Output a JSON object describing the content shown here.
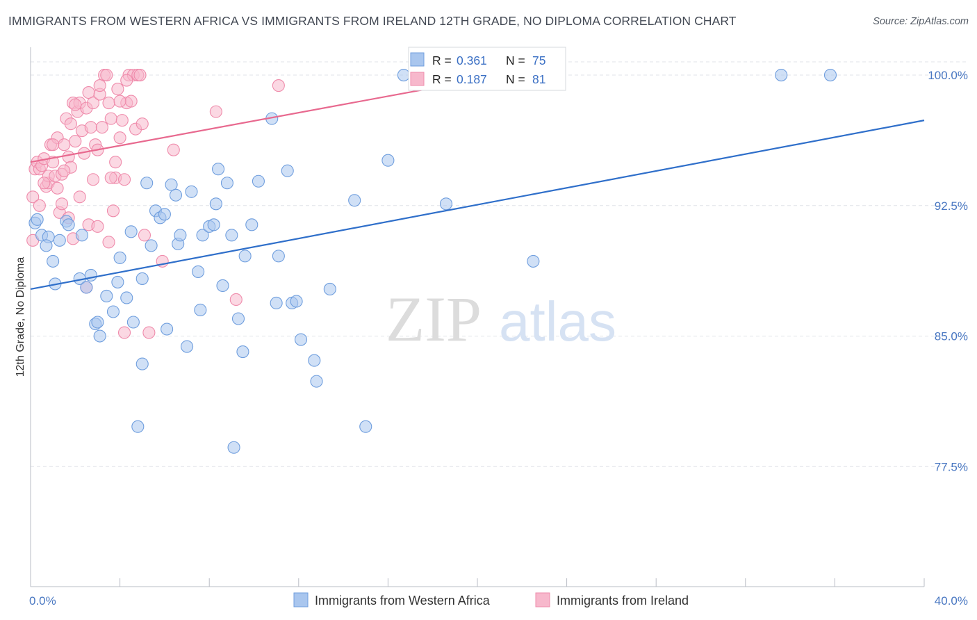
{
  "title": "IMMIGRANTS FROM WESTERN AFRICA VS IMMIGRANTS FROM IRELAND 12TH GRADE, NO DIPLOMA CORRELATION CHART",
  "source": "Source: ZipAtlas.com",
  "watermark": {
    "zip": "ZIP",
    "atlas": "atlas"
  },
  "stats": {
    "series1": {
      "r_label": "R = ",
      "r_value": "0.361",
      "n_label": "N = ",
      "n_value": "75"
    },
    "series2": {
      "r_label": "R = ",
      "r_value": "0.187",
      "n_label": "N = ",
      "n_value": "81"
    }
  },
  "legend": {
    "series1": "Immigrants from Western Africa",
    "series2": "Immigrants from Ireland"
  },
  "colors": {
    "series1_fill": "#a9c6ee",
    "series1_stroke": "#6f9ede",
    "series1_line": "#2f6fca",
    "series2_fill": "#f7b8cc",
    "series2_stroke": "#ef8bab",
    "series2_line": "#e8698f",
    "tick_label": "#4a78c2"
  },
  "chart_data": {
    "type": "scatter",
    "title": "IMMIGRANTS FROM WESTERN AFRICA VS IMMIGRANTS FROM IRELAND 12TH GRADE, NO DIPLOMA CORRELATION CHART",
    "xlabel": "",
    "ylabel": "12th Grade, No Diploma",
    "xlim": [
      0,
      40
    ],
    "ylim": [
      70.6,
      101.6
    ],
    "x_tick_labels": [
      {
        "value": 0,
        "label": "0.0%"
      },
      {
        "value": 40,
        "label": "40.0%"
      }
    ],
    "y_tick_labels": [
      {
        "value": 100,
        "label": "100.0%"
      },
      {
        "value": 92.5,
        "label": "92.5%"
      },
      {
        "value": 85,
        "label": "85.0%"
      },
      {
        "value": 77.5,
        "label": "77.5%"
      }
    ],
    "grid": "horizontal-dashed",
    "legend_position": "bottom",
    "series": [
      {
        "name": "Immigrants from Western Africa",
        "trend": {
          "x": [
            0,
            40
          ],
          "y": [
            87.7,
            97.4
          ]
        },
        "points": [
          [
            0.2,
            91.5
          ],
          [
            0.3,
            91.7
          ],
          [
            0.5,
            90.8
          ],
          [
            0.8,
            90.7
          ],
          [
            0.7,
            90.2
          ],
          [
            1.0,
            89.3
          ],
          [
            1.1,
            88.0
          ],
          [
            1.6,
            91.6
          ],
          [
            1.7,
            91.4
          ],
          [
            2.3,
            90.8
          ],
          [
            2.7,
            88.5
          ],
          [
            2.2,
            88.3
          ],
          [
            2.5,
            87.8
          ],
          [
            2.9,
            85.7
          ],
          [
            3.0,
            85.8
          ],
          [
            3.1,
            85.0
          ],
          [
            3.4,
            87.3
          ],
          [
            3.7,
            86.4
          ],
          [
            3.9,
            88.1
          ],
          [
            4.0,
            89.5
          ],
          [
            4.3,
            87.2
          ],
          [
            4.5,
            91.0
          ],
          [
            4.6,
            85.8
          ],
          [
            5.0,
            88.3
          ],
          [
            5.2,
            93.8
          ],
          [
            5.4,
            90.2
          ],
          [
            5.6,
            92.2
          ],
          [
            5.8,
            91.8
          ],
          [
            6.1,
            85.4
          ],
          [
            6.3,
            93.7
          ],
          [
            6.5,
            93.1
          ],
          [
            6.6,
            90.3
          ],
          [
            6.7,
            90.8
          ],
          [
            7.0,
            84.4
          ],
          [
            7.2,
            93.3
          ],
          [
            7.5,
            88.7
          ],
          [
            7.6,
            86.5
          ],
          [
            7.7,
            90.8
          ],
          [
            8.0,
            91.3
          ],
          [
            8.2,
            91.4
          ],
          [
            8.3,
            92.6
          ],
          [
            8.4,
            94.6
          ],
          [
            8.6,
            87.9
          ],
          [
            8.8,
            93.8
          ],
          [
            9.0,
            90.8
          ],
          [
            9.3,
            86.0
          ],
          [
            9.5,
            84.1
          ],
          [
            9.6,
            89.6
          ],
          [
            9.9,
            91.4
          ],
          [
            10.2,
            93.9
          ],
          [
            10.8,
            97.5
          ],
          [
            11.0,
            86.9
          ],
          [
            11.1,
            89.6
          ],
          [
            11.5,
            94.5
          ],
          [
            11.7,
            86.9
          ],
          [
            11.9,
            87.0
          ],
          [
            12.1,
            84.8
          ],
          [
            12.7,
            83.6
          ],
          [
            12.8,
            82.4
          ],
          [
            13.4,
            87.7
          ],
          [
            14.5,
            92.8
          ],
          [
            15.0,
            79.8
          ],
          [
            16.0,
            95.1
          ],
          [
            6.0,
            92.0
          ],
          [
            5.0,
            83.4
          ],
          [
            4.8,
            79.8
          ],
          [
            9.1,
            78.6
          ],
          [
            16.7,
            100.0
          ],
          [
            18.6,
            92.6
          ],
          [
            22.5,
            89.3
          ],
          [
            33.6,
            100.0
          ],
          [
            35.8,
            100.0
          ],
          [
            17.5,
            100.0
          ],
          [
            19.8,
            100.0
          ],
          [
            1.3,
            90.5
          ]
        ]
      },
      {
        "name": "Immigrants from Ireland",
        "trend": {
          "x": [
            0,
            20.7
          ],
          "y": [
            95.0,
            99.9
          ]
        },
        "points": [
          [
            0.1,
            93.0
          ],
          [
            0.1,
            90.5
          ],
          [
            0.2,
            94.6
          ],
          [
            0.3,
            95.0
          ],
          [
            0.4,
            94.6
          ],
          [
            0.5,
            94.8
          ],
          [
            0.6,
            95.2
          ],
          [
            0.7,
            93.6
          ],
          [
            0.8,
            93.8
          ],
          [
            0.8,
            94.2
          ],
          [
            0.9,
            96.0
          ],
          [
            1.0,
            95.0
          ],
          [
            1.1,
            94.2
          ],
          [
            1.2,
            96.4
          ],
          [
            1.3,
            92.1
          ],
          [
            1.4,
            92.6
          ],
          [
            1.5,
            96.0
          ],
          [
            1.6,
            97.5
          ],
          [
            1.7,
            95.3
          ],
          [
            1.8,
            97.2
          ],
          [
            1.9,
            98.4
          ],
          [
            2.0,
            96.2
          ],
          [
            2.1,
            97.9
          ],
          [
            2.2,
            98.4
          ],
          [
            2.3,
            96.8
          ],
          [
            2.4,
            95.5
          ],
          [
            2.5,
            98.1
          ],
          [
            2.6,
            99.0
          ],
          [
            2.7,
            97.0
          ],
          [
            2.8,
            98.4
          ],
          [
            2.9,
            96.0
          ],
          [
            3.0,
            95.7
          ],
          [
            3.1,
            98.9
          ],
          [
            3.2,
            97.0
          ],
          [
            3.3,
            100.0
          ],
          [
            3.4,
            100.0
          ],
          [
            3.5,
            98.4
          ],
          [
            3.6,
            97.5
          ],
          [
            3.7,
            92.2
          ],
          [
            3.8,
            94.1
          ],
          [
            3.9,
            99.2
          ],
          [
            4.0,
            96.4
          ],
          [
            4.1,
            97.4
          ],
          [
            4.2,
            94.0
          ],
          [
            4.3,
            98.4
          ],
          [
            4.4,
            100.0
          ],
          [
            4.5,
            98.5
          ],
          [
            4.6,
            100.0
          ],
          [
            4.7,
            96.9
          ],
          [
            4.8,
            100.0
          ],
          [
            4.9,
            100.0
          ],
          [
            5.0,
            97.2
          ],
          [
            5.1,
            90.8
          ],
          [
            5.3,
            85.2
          ],
          [
            5.9,
            89.3
          ],
          [
            6.4,
            95.7
          ],
          [
            1.8,
            94.7
          ],
          [
            2.6,
            91.4
          ],
          [
            3.0,
            91.3
          ],
          [
            3.5,
            90.4
          ],
          [
            4.2,
            85.2
          ],
          [
            1.9,
            90.6
          ],
          [
            2.5,
            87.8
          ],
          [
            1.4,
            94.3
          ],
          [
            2.0,
            98.3
          ],
          [
            3.1,
            99.4
          ],
          [
            0.6,
            93.8
          ],
          [
            1.0,
            96.0
          ],
          [
            1.5,
            94.5
          ],
          [
            2.8,
            94.0
          ],
          [
            3.6,
            94.1
          ],
          [
            4.0,
            98.5
          ],
          [
            8.3,
            97.9
          ],
          [
            9.2,
            87.1
          ],
          [
            11.1,
            99.4
          ],
          [
            4.3,
            99.7
          ],
          [
            1.2,
            93.5
          ],
          [
            0.4,
            92.5
          ],
          [
            2.2,
            93.0
          ],
          [
            3.8,
            95.0
          ],
          [
            1.7,
            91.8
          ]
        ]
      }
    ]
  }
}
